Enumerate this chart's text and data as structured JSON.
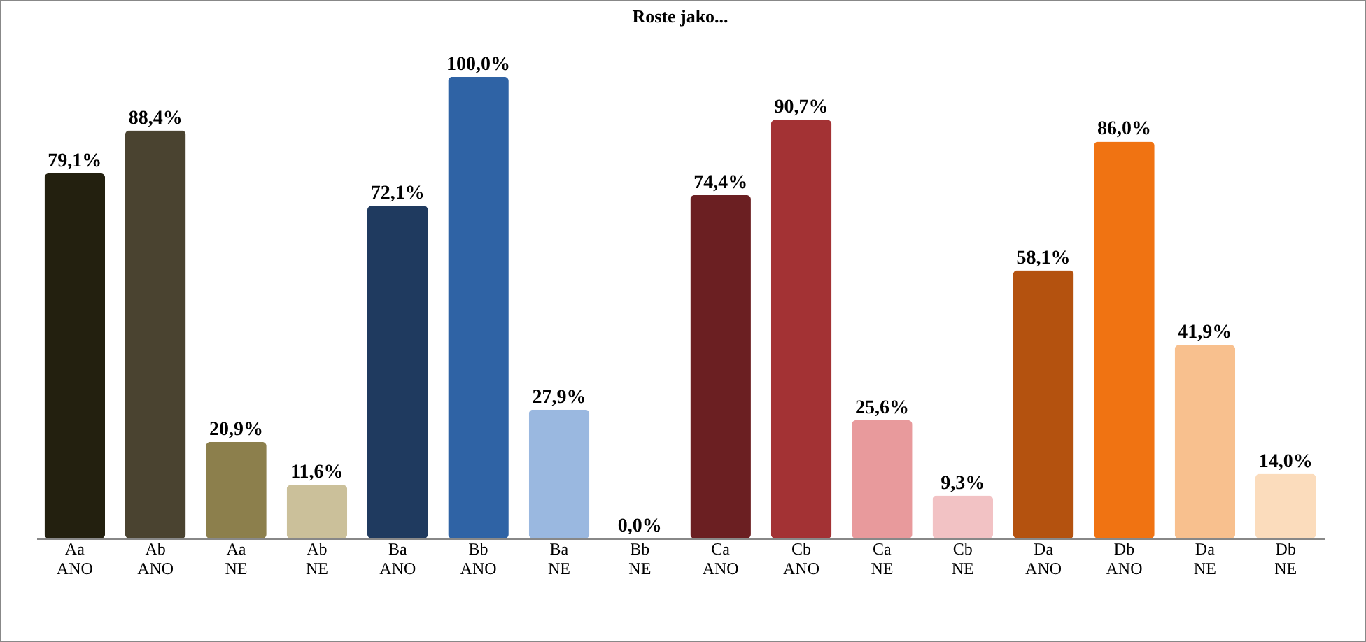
{
  "chart_data": {
    "type": "bar",
    "title": "Roste jako...",
    "categories": [
      "Aa ANO",
      "Ab ANO",
      "Aa NE",
      "Ab NE",
      "Ba ANO",
      "Bb ANO",
      "Ba NE",
      "Bb NE",
      "Ca ANO",
      "Cb ANO",
      "Ca NE",
      "Cb NE",
      "Da ANO",
      "Db ANO",
      "Da NE",
      "Db NE"
    ],
    "values": [
      79.1,
      88.4,
      20.9,
      11.6,
      72.1,
      100.0,
      27.9,
      0.0,
      74.4,
      90.7,
      25.6,
      9.3,
      58.1,
      86.0,
      41.9,
      14.0
    ],
    "value_labels": [
      "79,1%",
      "88,4%",
      "20,9%",
      "11,6%",
      "72,1%",
      "100,0%",
      "27,9%",
      "0,0%",
      "74,4%",
      "90,7%",
      "25,6%",
      "9,3%",
      "58,1%",
      "86,0%",
      "41,9%",
      "14,0%"
    ],
    "colors": [
      "#23200f",
      "#4a4330",
      "#8c7f4c",
      "#cbc09a",
      "#1f3a5f",
      "#2f63a5",
      "#9ab8e0",
      "#6a8fc0",
      "#6b1f22",
      "#a33234",
      "#e89a9c",
      "#f2c2c4",
      "#b4520f",
      "#f07312",
      "#f8c08e",
      "#fbdcbc"
    ],
    "ylim": [
      0,
      100
    ],
    "tick_labels": "x",
    "grid": false
  }
}
